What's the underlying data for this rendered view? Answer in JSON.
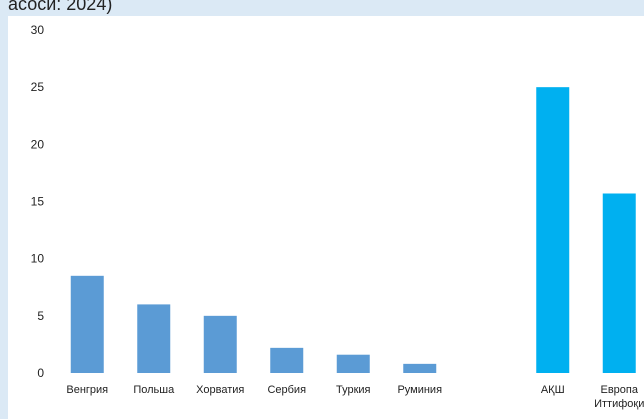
{
  "caption": "асоси: 2024)",
  "chart_data": {
    "type": "bar",
    "categories": [
      "Венгрия",
      "Польша",
      "Хорватия",
      "Сербия",
      "Туркия",
      "Руминия",
      "",
      "АҚШ",
      "Европа Иттифоқи"
    ],
    "category_lines": [
      [
        "Венгрия"
      ],
      [
        "Польша"
      ],
      [
        "Хорватия"
      ],
      [
        "Сербия"
      ],
      [
        "Туркия"
      ],
      [
        "Руминия"
      ],
      [
        ""
      ],
      [
        "АҚШ"
      ],
      [
        "Европа",
        "Иттифоқи"
      ]
    ],
    "values": [
      8.5,
      6.0,
      5.0,
      2.2,
      1.6,
      0.8,
      null,
      25.0,
      15.7
    ],
    "bar_colors": [
      "#5b9bd5",
      "#5b9bd5",
      "#5b9bd5",
      "#5b9bd5",
      "#5b9bd5",
      "#5b9bd5",
      null,
      "#00b0f0",
      "#00b0f0"
    ],
    "ylim": [
      0,
      30
    ],
    "yticks": [
      0,
      5,
      10,
      15,
      20,
      25,
      30
    ],
    "grid": false,
    "title": "",
    "xlabel": "",
    "ylabel": ""
  }
}
